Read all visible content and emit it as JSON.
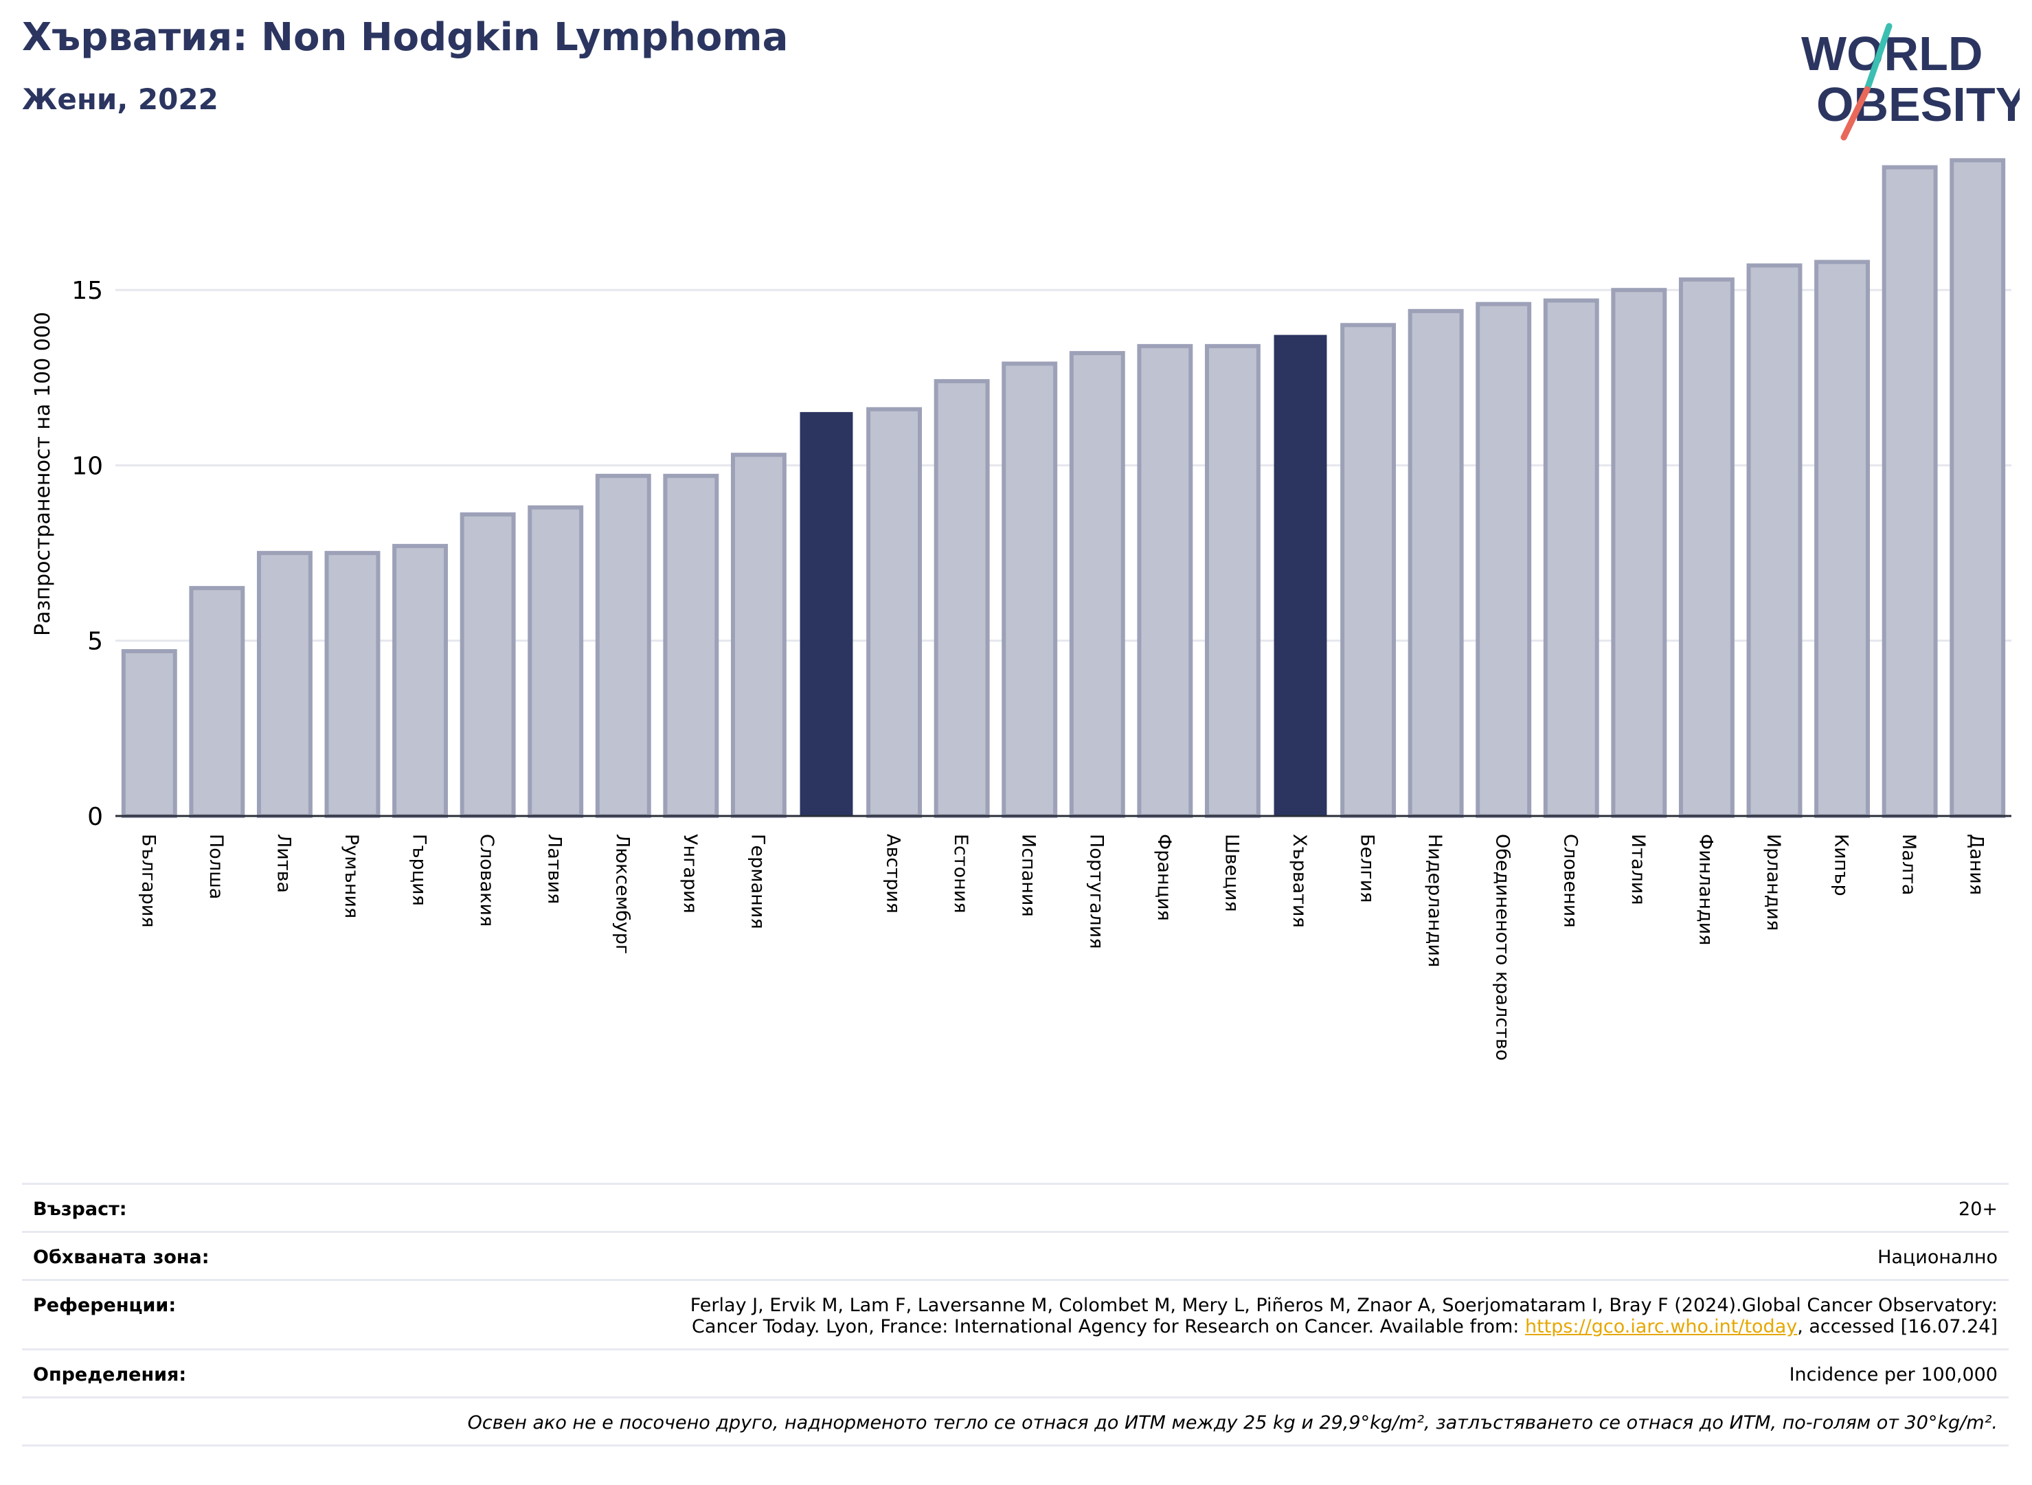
{
  "header": {
    "title": "Хърватия: Non Hodgkin Lymphoma",
    "subtitle": "Жени, 2022"
  },
  "logo": {
    "line1": "WORLD",
    "line2": "OBESITY",
    "colors": {
      "text": "#2b3560",
      "slash_top": "#3bbfb2",
      "slash_bottom": "#e8685a"
    }
  },
  "colors": {
    "bar": "#bfc2d0",
    "bar_edge": "#9da1b8",
    "highlight": "#2b3560",
    "grid": "#e6e7ee",
    "axis": "#2b2f3a"
  },
  "chart_data": {
    "type": "bar",
    "ylabel": "Разпространеност  на 100 000",
    "ylim": [
      0,
      19
    ],
    "yticks": [
      0,
      5,
      10,
      15
    ],
    "grid": true,
    "categories": [
      "България",
      "Полша",
      "Литва",
      "Румъния",
      "Гърция",
      "Словакия",
      "Латвия",
      "Люксембург",
      "Унгария",
      "Германия",
      "",
      "Австрия",
      "Естония",
      "Испания",
      "Португалия",
      "Франция",
      "Швеция",
      "Хърватия",
      "Белгия",
      "Нидерландия",
      "Обединеното кралство",
      "Словения",
      "Италия",
      "Финландия",
      "Ирландия",
      "Кипър",
      "Малта",
      "Дания"
    ],
    "values": [
      4.7,
      6.5,
      7.5,
      7.5,
      7.7,
      8.6,
      8.8,
      9.7,
      9.7,
      10.3,
      11.5,
      11.6,
      12.4,
      12.9,
      13.2,
      13.4,
      13.4,
      13.7,
      14.0,
      14.4,
      14.6,
      14.7,
      15.0,
      15.3,
      15.7,
      15.8,
      18.5,
      18.7
    ],
    "highlighted": [
      10,
      17
    ]
  },
  "meta": {
    "age_label": "Възраст:",
    "age_value": "20+",
    "area_label": "Обхваната зона:",
    "area_value": "Национално",
    "refs_label": "Референции:",
    "refs_line1": "Ferlay J, Ervik M, Lam F, Laversanne M, Colombet M, Mery L, Piñeros M, Znaor A, Soerjomataram I, Bray F (2024).Global Cancer Observatory:",
    "refs_line2_pre": "Cancer Today. Lyon, France: International Agency for Research on Cancer. Available from: ",
    "refs_link": "https://gco.iarc.who.int/today",
    "refs_line2_post": ", accessed [16.07.24]",
    "def_label": "Определения:",
    "def_value": "Incidence per 100,000",
    "note": "Освен ако не е посочено друго, наднорменото тегло се отнася до ИТМ между 25 kg и 29,9°kg/m², затлъстяването се отнася до ИТМ, по-голям от 30°kg/m²."
  }
}
